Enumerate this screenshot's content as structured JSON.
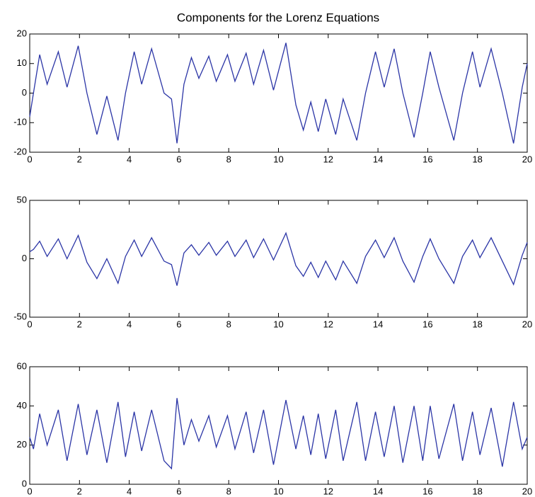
{
  "chart_data": [
    {
      "type": "line",
      "title": "Components for the Lorenz Equations",
      "color": "#2b35a6",
      "x": [
        0,
        0.15,
        0.4,
        0.7,
        1.15,
        1.5,
        1.95,
        2.3,
        2.7,
        3.1,
        3.55,
        3.85,
        4.2,
        4.5,
        4.9,
        5.4,
        5.7,
        5.92,
        6.2,
        6.5,
        6.8,
        7.2,
        7.5,
        7.95,
        8.25,
        8.7,
        9,
        9.4,
        9.8,
        10.3,
        10.7,
        11,
        11.3,
        11.6,
        11.9,
        12.3,
        12.6,
        13.15,
        13.5,
        13.9,
        14.25,
        14.65,
        15,
        15.45,
        15.8,
        16.1,
        16.45,
        17.05,
        17.4,
        17.8,
        18.1,
        18.55,
        19,
        19.45,
        19.8,
        20
      ],
      "values": [
        -8,
        0,
        13,
        3,
        14,
        2,
        16,
        0,
        -14,
        -1,
        -16,
        0,
        14,
        3,
        15,
        0,
        -2,
        -17,
        3,
        12,
        5,
        12.5,
        4,
        13,
        4,
        13.5,
        3,
        14.5,
        1,
        17,
        -4,
        -12.5,
        -3,
        -13,
        -2,
        -14,
        -2,
        -16,
        0,
        14,
        2,
        15,
        0,
        -15,
        0,
        14,
        2,
        -16,
        0,
        14,
        2,
        15,
        0,
        -17,
        2,
        10
      ],
      "xlim": [
        0,
        20
      ],
      "xticks": [
        0,
        2,
        4,
        6,
        8,
        10,
        12,
        14,
        16,
        18,
        20
      ],
      "ylim": [
        -20,
        20
      ],
      "yticks": [
        -20,
        -10,
        0,
        10,
        20
      ]
    },
    {
      "type": "line",
      "color": "#2b35a6",
      "x": [
        0,
        0.15,
        0.4,
        0.7,
        1.15,
        1.5,
        1.95,
        2.3,
        2.7,
        3.1,
        3.55,
        3.85,
        4.2,
        4.5,
        4.9,
        5.4,
        5.7,
        5.92,
        6.2,
        6.5,
        6.8,
        7.2,
        7.5,
        7.95,
        8.25,
        8.7,
        9,
        9.4,
        9.8,
        10.3,
        10.7,
        11,
        11.3,
        11.6,
        11.9,
        12.3,
        12.6,
        13.15,
        13.5,
        13.9,
        14.25,
        14.65,
        15,
        15.45,
        15.8,
        16.1,
        16.45,
        17.05,
        17.4,
        17.8,
        18.1,
        18.55,
        19,
        19.45,
        19.8,
        20
      ],
      "values": [
        6,
        8,
        15,
        2,
        17,
        0,
        20,
        -3,
        -17,
        0,
        -21,
        2,
        16,
        2,
        18,
        -2,
        -5,
        -23,
        5,
        12,
        3,
        14,
        3,
        15,
        2,
        16,
        1,
        17,
        -1,
        22,
        -6,
        -15,
        -3,
        -16,
        -2,
        -18,
        -2,
        -21,
        2,
        16,
        1,
        18,
        -2,
        -20,
        2,
        17,
        0,
        -21,
        2,
        16,
        1,
        18,
        -2,
        -22,
        3,
        14
      ],
      "xlim": [
        0,
        20
      ],
      "xticks": [
        0,
        2,
        4,
        6,
        8,
        10,
        12,
        14,
        16,
        18,
        20
      ],
      "ylim": [
        -50,
        50
      ],
      "yticks": [
        -50,
        0,
        50
      ]
    },
    {
      "type": "line",
      "color": "#2b35a6",
      "x": [
        0,
        0.15,
        0.4,
        0.7,
        1.15,
        1.5,
        1.95,
        2.3,
        2.7,
        3.1,
        3.55,
        3.85,
        4.2,
        4.5,
        4.9,
        5.4,
        5.7,
        5.92,
        6.2,
        6.5,
        6.8,
        7.2,
        7.5,
        7.95,
        8.25,
        8.7,
        9,
        9.4,
        9.8,
        10.3,
        10.7,
        11,
        11.3,
        11.6,
        11.9,
        12.3,
        12.6,
        13.15,
        13.5,
        13.9,
        14.25,
        14.65,
        15,
        15.45,
        15.8,
        16.1,
        16.45,
        17.05,
        17.4,
        17.8,
        18.1,
        18.55,
        19,
        19.45,
        19.8,
        20
      ],
      "values": [
        24,
        18,
        36,
        20,
        38,
        12,
        41,
        15,
        38,
        11,
        42,
        14,
        37,
        17,
        38,
        12,
        8,
        44,
        20,
        33,
        22,
        35,
        19,
        35,
        18,
        37,
        16,
        38,
        10,
        43,
        18,
        35,
        15,
        36,
        13,
        38,
        12,
        42,
        12,
        37,
        14,
        40,
        11,
        40,
        12,
        40,
        13,
        41,
        12,
        37,
        15,
        39,
        9,
        42,
        18,
        24
      ],
      "xlim": [
        0,
        20
      ],
      "xticks": [
        0,
        2,
        4,
        6,
        8,
        10,
        12,
        14,
        16,
        18,
        20
      ],
      "ylim": [
        0,
        60
      ],
      "yticks": [
        0,
        20,
        40,
        60
      ]
    }
  ]
}
